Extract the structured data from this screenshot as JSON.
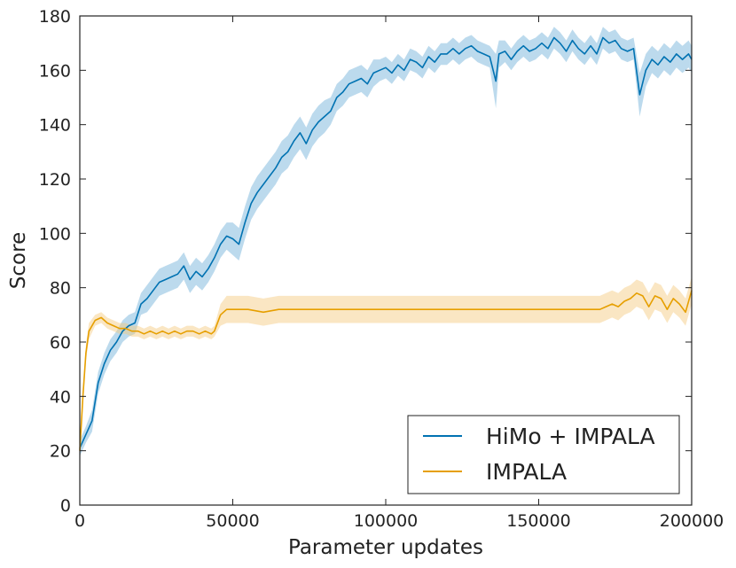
{
  "chart_data": {
    "type": "line",
    "title": "",
    "xlabel": "Parameter updates",
    "ylabel": "Score",
    "xlim": [
      0,
      200000
    ],
    "ylim": [
      0,
      180
    ],
    "xticks": [
      0,
      50000,
      100000,
      150000,
      200000
    ],
    "yticks": [
      0,
      20,
      40,
      60,
      80,
      100,
      120,
      140,
      160,
      180
    ],
    "grid": false,
    "legend_position": "bottom-right",
    "series": [
      {
        "name": "HiMo + IMPALA",
        "color": "#0072b2",
        "band_color": "#6baed6",
        "points": [
          [
            0,
            21,
            3
          ],
          [
            2000,
            26,
            3
          ],
          [
            4000,
            31,
            4
          ],
          [
            6000,
            45,
            4
          ],
          [
            8000,
            52,
            4
          ],
          [
            10000,
            57,
            4
          ],
          [
            12000,
            60,
            4
          ],
          [
            14000,
            64,
            4
          ],
          [
            16000,
            66,
            4
          ],
          [
            18000,
            67,
            4
          ],
          [
            20000,
            74,
            4
          ],
          [
            22000,
            76,
            5
          ],
          [
            24000,
            79,
            5
          ],
          [
            26000,
            82,
            5
          ],
          [
            28000,
            83,
            5
          ],
          [
            30000,
            84,
            5
          ],
          [
            32000,
            85,
            5
          ],
          [
            34000,
            88,
            5
          ],
          [
            36000,
            83,
            5
          ],
          [
            38000,
            86,
            5
          ],
          [
            40000,
            84,
            5
          ],
          [
            42000,
            87,
            5
          ],
          [
            44000,
            91,
            5
          ],
          [
            46000,
            96,
            5
          ],
          [
            48000,
            99,
            5
          ],
          [
            50000,
            98,
            6
          ],
          [
            52000,
            96,
            6
          ],
          [
            54000,
            104,
            6
          ],
          [
            56000,
            111,
            6
          ],
          [
            58000,
            115,
            6
          ],
          [
            60000,
            118,
            6
          ],
          [
            62000,
            121,
            6
          ],
          [
            64000,
            124,
            6
          ],
          [
            66000,
            128,
            6
          ],
          [
            68000,
            130,
            6
          ],
          [
            70000,
            134,
            6
          ],
          [
            72000,
            137,
            6
          ],
          [
            74000,
            133,
            6
          ],
          [
            76000,
            138,
            6
          ],
          [
            78000,
            141,
            6
          ],
          [
            80000,
            143,
            6
          ],
          [
            82000,
            145,
            5
          ],
          [
            84000,
            150,
            5
          ],
          [
            86000,
            152,
            5
          ],
          [
            88000,
            155,
            5
          ],
          [
            90000,
            156,
            5
          ],
          [
            92000,
            157,
            5
          ],
          [
            94000,
            155,
            5
          ],
          [
            96000,
            159,
            5
          ],
          [
            98000,
            160,
            4
          ],
          [
            100000,
            161,
            4
          ],
          [
            102000,
            159,
            4
          ],
          [
            104000,
            162,
            4
          ],
          [
            106000,
            160,
            4
          ],
          [
            108000,
            164,
            4
          ],
          [
            110000,
            163,
            4
          ],
          [
            112000,
            161,
            4
          ],
          [
            114000,
            165,
            4
          ],
          [
            116000,
            163,
            4
          ],
          [
            118000,
            166,
            4
          ],
          [
            120000,
            166,
            4
          ],
          [
            122000,
            168,
            4
          ],
          [
            124000,
            166,
            4
          ],
          [
            126000,
            168,
            4
          ],
          [
            128000,
            169,
            4
          ],
          [
            130000,
            167,
            4
          ],
          [
            132000,
            166,
            4
          ],
          [
            134000,
            165,
            4
          ],
          [
            136000,
            156,
            10
          ],
          [
            137000,
            166,
            5
          ],
          [
            139000,
            167,
            4
          ],
          [
            141000,
            164,
            4
          ],
          [
            143000,
            167,
            4
          ],
          [
            145000,
            169,
            4
          ],
          [
            147000,
            167,
            4
          ],
          [
            149000,
            168,
            4
          ],
          [
            151000,
            170,
            4
          ],
          [
            153000,
            168,
            4
          ],
          [
            155000,
            172,
            4
          ],
          [
            157000,
            170,
            4
          ],
          [
            159000,
            167,
            4
          ],
          [
            161000,
            171,
            4
          ],
          [
            163000,
            168,
            4
          ],
          [
            165000,
            166,
            4
          ],
          [
            167000,
            169,
            4
          ],
          [
            169000,
            166,
            4
          ],
          [
            171000,
            172,
            4
          ],
          [
            173000,
            170,
            4
          ],
          [
            175000,
            171,
            4
          ],
          [
            177000,
            168,
            4
          ],
          [
            179000,
            167,
            4
          ],
          [
            181000,
            168,
            4
          ],
          [
            183000,
            151,
            8
          ],
          [
            185000,
            160,
            6
          ],
          [
            187000,
            164,
            5
          ],
          [
            189000,
            162,
            5
          ],
          [
            191000,
            165,
            5
          ],
          [
            193000,
            163,
            5
          ],
          [
            195000,
            166,
            5
          ],
          [
            197000,
            164,
            5
          ],
          [
            199000,
            166,
            5
          ],
          [
            200000,
            164,
            5
          ]
        ]
      },
      {
        "name": "IMPALA",
        "color": "#e69f00",
        "band_color": "#f5c87a",
        "points": [
          [
            0,
            20,
            3
          ],
          [
            1000,
            40,
            3
          ],
          [
            2000,
            56,
            3
          ],
          [
            3000,
            64,
            3
          ],
          [
            5000,
            68,
            2
          ],
          [
            7000,
            69,
            2
          ],
          [
            9000,
            67,
            2
          ],
          [
            11000,
            66,
            2
          ],
          [
            13000,
            65,
            2
          ],
          [
            15000,
            65,
            2
          ],
          [
            17000,
            64,
            2
          ],
          [
            19000,
            64,
            2
          ],
          [
            21000,
            63,
            2
          ],
          [
            23000,
            64,
            2
          ],
          [
            25000,
            63,
            2
          ],
          [
            27000,
            64,
            2
          ],
          [
            29000,
            63,
            2
          ],
          [
            31000,
            64,
            2
          ],
          [
            33000,
            63,
            2
          ],
          [
            35000,
            64,
            2
          ],
          [
            37000,
            64,
            2
          ],
          [
            39000,
            63,
            2
          ],
          [
            41000,
            64,
            2
          ],
          [
            43000,
            63,
            2
          ],
          [
            44000,
            64,
            2
          ],
          [
            46000,
            70,
            4
          ],
          [
            48000,
            72,
            5
          ],
          [
            50000,
            72,
            5
          ],
          [
            55000,
            72,
            5
          ],
          [
            60000,
            71,
            5
          ],
          [
            65000,
            72,
            5
          ],
          [
            70000,
            72,
            5
          ],
          [
            75000,
            72,
            5
          ],
          [
            80000,
            72,
            5
          ],
          [
            85000,
            72,
            5
          ],
          [
            90000,
            72,
            5
          ],
          [
            95000,
            72,
            5
          ],
          [
            100000,
            72,
            5
          ],
          [
            105000,
            72,
            5
          ],
          [
            110000,
            72,
            5
          ],
          [
            115000,
            72,
            5
          ],
          [
            120000,
            72,
            5
          ],
          [
            125000,
            72,
            5
          ],
          [
            130000,
            72,
            5
          ],
          [
            135000,
            72,
            5
          ],
          [
            140000,
            72,
            5
          ],
          [
            145000,
            72,
            5
          ],
          [
            150000,
            72,
            5
          ],
          [
            155000,
            72,
            5
          ],
          [
            160000,
            72,
            5
          ],
          [
            165000,
            72,
            5
          ],
          [
            170000,
            72,
            5
          ],
          [
            172000,
            73,
            5
          ],
          [
            174000,
            74,
            5
          ],
          [
            176000,
            73,
            5
          ],
          [
            178000,
            75,
            5
          ],
          [
            180000,
            76,
            5
          ],
          [
            182000,
            78,
            5
          ],
          [
            184000,
            77,
            5
          ],
          [
            186000,
            73,
            5
          ],
          [
            188000,
            77,
            5
          ],
          [
            190000,
            76,
            5
          ],
          [
            192000,
            72,
            5
          ],
          [
            194000,
            76,
            5
          ],
          [
            196000,
            74,
            5
          ],
          [
            198000,
            71,
            5
          ],
          [
            200000,
            79,
            5
          ]
        ]
      }
    ]
  }
}
